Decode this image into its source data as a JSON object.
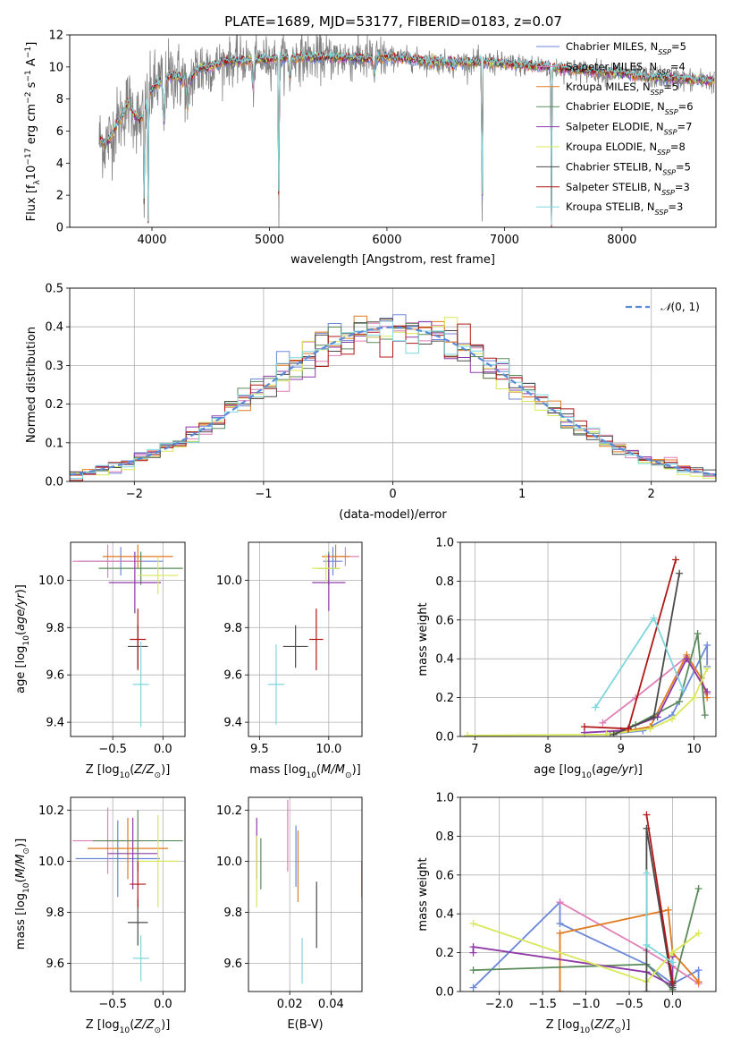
{
  "title": "PLATE=1689, MJD=53177, FIBERID=0183, z=0.07",
  "colors": {
    "Chabrier MILES": "#6b87d8",
    "Salpeter MILES": "#e07fb8",
    "Kroupa MILES": "#e07a1f",
    "Chabrier ELODIE": "#5a8a5a",
    "Salpeter ELODIE": "#8e3aa8",
    "Kroupa ELODIE": "#d8e85a",
    "Chabrier STELIB": "#4a4a4a",
    "Salpeter STELIB": "#b01818",
    "Kroupa STELIB": "#7fd6dc",
    "data": "#808080",
    "normal": "#5b8bd8"
  },
  "chart_data": [
    {
      "id": "spectrum",
      "type": "line",
      "title": "PLATE=1689, MJD=53177, FIBERID=0183, z=0.07",
      "xlabel": "wavelength [Angstrom, rest frame]",
      "ylabel": "Flux [f$_\\lambda$10$^{-17}$ erg cm$^{-2}$ s$^{-1}$ A$^{-1}$]",
      "xlim": [
        3300,
        8800
      ],
      "ylim": [
        0,
        12
      ],
      "xticks": [
        4000,
        5000,
        6000,
        7000,
        8000
      ],
      "yticks": [
        0,
        2,
        4,
        6,
        8,
        10,
        12
      ],
      "legend_position": "top-right",
      "legend": [
        {
          "series": "Chabrier MILES",
          "label": "Chabrier MILES, N",
          "sub": "SSP",
          "tail": "=5"
        },
        {
          "series": "Salpeter MILES",
          "label": "Salpeter MILES, N",
          "sub": "SSP",
          "tail": "=4"
        },
        {
          "series": "Kroupa MILES",
          "label": "Kroupa MILES, N",
          "sub": "SSP",
          "tail": "=5"
        },
        {
          "series": "Chabrier ELODIE",
          "label": "Chabrier ELODIE, N",
          "sub": "SSP",
          "tail": "=6"
        },
        {
          "series": "Salpeter ELODIE",
          "label": "Salpeter ELODIE, N",
          "sub": "SSP",
          "tail": "=7"
        },
        {
          "series": "Kroupa ELODIE",
          "label": "Kroupa ELODIE, N",
          "sub": "SSP",
          "tail": "=8"
        },
        {
          "series": "Chabrier STELIB",
          "label": "Chabrier STELIB, N",
          "sub": "SSP",
          "tail": "=5"
        },
        {
          "series": "Salpeter STELIB",
          "label": "Salpeter STELIB, N",
          "sub": "SSP",
          "tail": "=3"
        },
        {
          "series": "Kroupa STELIB",
          "label": "Kroupa STELIB, N",
          "sub": "SSP",
          "tail": "=3"
        }
      ],
      "continuum": {
        "x": [
          3550,
          3600,
          3650,
          3700,
          3750,
          3800,
          3850,
          3900,
          3950,
          4000,
          4100,
          4200,
          4300,
          4400,
          4500,
          4600,
          4800,
          5000,
          5200,
          5400,
          5600,
          5800,
          6000,
          6200,
          6400,
          6600,
          6800,
          7000,
          7200,
          7400,
          7600,
          7800,
          8000,
          8200,
          8400,
          8600,
          8800
        ],
        "y": [
          5.5,
          5.2,
          5.6,
          6.5,
          7.0,
          7.8,
          7.0,
          6.6,
          7.5,
          8.6,
          9.3,
          9.5,
          9.0,
          9.9,
          10.0,
          10.3,
          10.4,
          10.5,
          10.6,
          10.6,
          10.6,
          10.5,
          10.6,
          10.5,
          10.3,
          10.3,
          10.3,
          10.2,
          10.1,
          10.0,
          9.8,
          9.7,
          9.6,
          9.4,
          9.3,
          9.2,
          9.1
        ]
      },
      "absorption_lines": [
        {
          "x": 3934,
          "y": 0.3
        },
        {
          "x": 3968,
          "y": 0.4
        },
        {
          "x": 4102,
          "y": 6.5
        },
        {
          "x": 4305,
          "y": 7.5
        },
        {
          "x": 4861,
          "y": 8.8
        },
        {
          "x": 5080,
          "y": 0.0
        },
        {
          "x": 5175,
          "y": 9.3
        },
        {
          "x": 5892,
          "y": 9.6
        },
        {
          "x": 6563,
          "y": 10.0
        },
        {
          "x": 6810,
          "y": 0.0
        },
        {
          "x": 7400,
          "y": 0.0
        }
      ]
    },
    {
      "id": "residuals",
      "type": "line",
      "xlabel": "(data-model)/error",
      "ylabel": "Normed distribution",
      "xlim": [
        -2.5,
        2.5
      ],
      "ylim": [
        0,
        0.5
      ],
      "xticks": [
        -2,
        -1,
        0,
        1,
        2
      ],
      "yticks": [
        0.0,
        0.1,
        0.2,
        0.3,
        0.4,
        0.5
      ],
      "legend_position": "top-right",
      "legend": [
        {
          "label": "N(0, 1)"
        }
      ],
      "bin_width": 0.1
    },
    {
      "id": "age-vs-Z",
      "type": "scatter",
      "xlabel": "Z [log10(Z/Z⊙)]",
      "ylabel": "age  [log10(age/yr)]",
      "xlim": [
        -0.92,
        0.22
      ],
      "ylim": [
        9.34,
        10.16
      ],
      "xticks": [
        -0.5,
        0.0
      ],
      "yticks": [
        9.4,
        9.6,
        9.8,
        10.0
      ],
      "series": [
        {
          "name": "Chabrier MILES",
          "x": -0.42,
          "xerr": 0.42,
          "y": 10.08,
          "yerr": 0.06
        },
        {
          "name": "Salpeter MILES",
          "x": -0.55,
          "xerr": 0.35,
          "y": 10.08,
          "yerr": 0.07
        },
        {
          "name": "Kroupa MILES",
          "x": -0.25,
          "xerr": 0.35,
          "y": 10.1,
          "yerr": 0.05
        },
        {
          "name": "Chabrier ELODIE",
          "x": -0.22,
          "xerr": 0.42,
          "y": 10.05,
          "yerr": 0.07
        },
        {
          "name": "Salpeter ELODIE",
          "x": -0.28,
          "xerr": 0.26,
          "y": 9.99,
          "yerr": 0.13
        },
        {
          "name": "Kroupa ELODIE",
          "x": -0.05,
          "xerr": 0.2,
          "y": 10.02,
          "yerr": 0.08
        },
        {
          "name": "Chabrier STELIB",
          "x": -0.25,
          "xerr": 0.1,
          "y": 9.72,
          "yerr": 0.09
        },
        {
          "name": "Salpeter STELIB",
          "x": -0.25,
          "xerr": 0.08,
          "y": 9.75,
          "yerr": 0.13
        },
        {
          "name": "Kroupa STELIB",
          "x": -0.22,
          "xerr": 0.08,
          "y": 9.56,
          "yerr": 0.18
        }
      ]
    },
    {
      "id": "age-vs-mass",
      "type": "scatter",
      "xlabel": "mass [log10(M/M⊙)]",
      "ylabel": "",
      "xlim": [
        9.42,
        10.24
      ],
      "ylim": [
        9.34,
        10.16
      ],
      "xticks": [
        9.5,
        10.0
      ],
      "yticks": [
        9.4,
        9.6,
        9.8,
        10.0
      ],
      "series": [
        {
          "name": "Chabrier MILES",
          "x": 10.03,
          "xerr": 0.07,
          "y": 10.08,
          "yerr": 0.06
        },
        {
          "name": "Salpeter MILES",
          "x": 10.12,
          "xerr": 0.1,
          "y": 10.1,
          "yerr": 0.04
        },
        {
          "name": "Kroupa MILES",
          "x": 10.05,
          "xerr": 0.1,
          "y": 10.1,
          "yerr": 0.05
        },
        {
          "name": "Chabrier ELODIE",
          "x": 10.0,
          "xerr": 0.08,
          "y": 10.05,
          "yerr": 0.07
        },
        {
          "name": "Salpeter ELODIE",
          "x": 10.0,
          "xerr": 0.12,
          "y": 9.99,
          "yerr": 0.12
        },
        {
          "name": "Kroupa ELODIE",
          "x": 9.98,
          "xerr": 0.1,
          "y": 10.05,
          "yerr": 0.06
        },
        {
          "name": "Chabrier STELIB",
          "x": 9.76,
          "xerr": 0.09,
          "y": 9.72,
          "yerr": 0.09
        },
        {
          "name": "Salpeter STELIB",
          "x": 9.91,
          "xerr": 0.05,
          "y": 9.75,
          "yerr": 0.13
        },
        {
          "name": "Kroupa STELIB",
          "x": 9.62,
          "xerr": 0.06,
          "y": 9.56,
          "yerr": 0.17
        }
      ]
    },
    {
      "id": "mass-weight-vs-age",
      "type": "line",
      "xlabel": "age  [log10(age/yr)]",
      "ylabel": "mass weight",
      "xlim": [
        6.8,
        10.3
      ],
      "ylim": [
        0.0,
        1.0
      ],
      "xticks": [
        7,
        8,
        9,
        10
      ],
      "yticks": [
        0.0,
        0.2,
        0.4,
        0.6,
        0.8,
        1.0
      ],
      "grid": true,
      "series": [
        {
          "name": "Chabrier MILES",
          "x": [
            8.8,
            9.3,
            9.7,
            10.18,
            10.18
          ],
          "y": [
            0.01,
            0.03,
            0.11,
            0.47,
            0.36
          ]
        },
        {
          "name": "Salpeter MILES",
          "x": [
            8.75,
            9.2,
            9.9,
            10.18
          ],
          "y": [
            0.07,
            0.2,
            0.41,
            0.22
          ]
        },
        {
          "name": "Kroupa MILES",
          "x": [
            8.8,
            9.4,
            9.9,
            10.1,
            10.18
          ],
          "y": [
            0.01,
            0.05,
            0.42,
            0.3,
            0.2
          ]
        },
        {
          "name": "Chabrier ELODIE",
          "x": [
            8.85,
            9.2,
            9.8,
            10.05,
            10.15
          ],
          "y": [
            0.01,
            0.06,
            0.18,
            0.53,
            0.11
          ]
        },
        {
          "name": "Salpeter ELODIE",
          "x": [
            8.5,
            9.0,
            9.5,
            9.9,
            10.18
          ],
          "y": [
            0.02,
            0.03,
            0.1,
            0.4,
            0.23
          ]
        },
        {
          "name": "Kroupa ELODIE",
          "x": [
            6.9,
            8.8,
            9.4,
            9.7,
            10.0,
            10.18
          ],
          "y": [
            0.005,
            0.01,
            0.04,
            0.09,
            0.2,
            0.35
          ]
        },
        {
          "name": "Chabrier STELIB",
          "x": [
            8.9,
            9.45,
            9.8
          ],
          "y": [
            0.01,
            0.1,
            0.84
          ]
        },
        {
          "name": "Salpeter STELIB",
          "x": [
            8.5,
            9.1,
            9.75
          ],
          "y": [
            0.05,
            0.04,
            0.91
          ]
        },
        {
          "name": "Kroupa STELIB",
          "x": [
            8.65,
            9.45,
            9.85
          ],
          "y": [
            0.15,
            0.61,
            0.24
          ]
        }
      ]
    },
    {
      "id": "mass-vs-Z",
      "type": "scatter",
      "xlabel": "Z [log10(Z/Z⊙)]",
      "ylabel": "mass [log10(M/M⊙)]",
      "xlim": [
        -0.92,
        0.22
      ],
      "ylim": [
        9.49,
        10.25
      ],
      "xticks": [
        -0.5,
        0.0
      ],
      "yticks": [
        9.6,
        9.8,
        10.0,
        10.2
      ],
      "series": [
        {
          "name": "Chabrier MILES",
          "x": -0.45,
          "xerr": 0.42,
          "y": 10.01,
          "yerr": 0.15
        },
        {
          "name": "Salpeter MILES",
          "x": -0.55,
          "xerr": 0.35,
          "y": 10.08,
          "yerr": 0.13
        },
        {
          "name": "Kroupa MILES",
          "x": -0.35,
          "xerr": 0.4,
          "y": 10.05,
          "yerr": 0.12
        },
        {
          "name": "Chabrier ELODIE",
          "x": -0.25,
          "xerr": 0.45,
          "y": 10.08,
          "yerr": 0.12
        },
        {
          "name": "Salpeter ELODIE",
          "x": -0.3,
          "xerr": 0.25,
          "y": 10.03,
          "yerr": 0.14
        },
        {
          "name": "Kroupa ELODIE",
          "x": -0.05,
          "xerr": 0.2,
          "y": 10.0,
          "yerr": 0.18
        },
        {
          "name": "Chabrier STELIB",
          "x": -0.25,
          "xerr": 0.1,
          "y": 9.76,
          "yerr": 0.09
        },
        {
          "name": "Salpeter STELIB",
          "x": -0.25,
          "xerr": 0.08,
          "y": 9.91,
          "yerr": 0.09
        },
        {
          "name": "Kroupa STELIB",
          "x": -0.22,
          "xerr": 0.08,
          "y": 9.62,
          "yerr": 0.09
        }
      ]
    },
    {
      "id": "mass-vs-EBV",
      "type": "scatter",
      "xlabel": "E(B-V)",
      "ylabel": "",
      "xlim": [
        0.0,
        0.055
      ],
      "ylim": [
        9.49,
        10.25
      ],
      "xticks": [
        0.02,
        0.04
      ],
      "yticks": [
        9.6,
        9.8,
        10.0,
        10.2
      ],
      "series": [
        {
          "name": "Chabrier MILES",
          "x": 0.023,
          "y": 10.02,
          "yerr": 0.12
        },
        {
          "name": "Salpeter MILES",
          "x": 0.019,
          "y": 10.1,
          "yerr": 0.14
        },
        {
          "name": "Kroupa MILES",
          "x": 0.024,
          "y": 9.98,
          "yerr": 0.14
        },
        {
          "name": "Chabrier ELODIE",
          "x": 0.006,
          "y": 9.99,
          "yerr": 0.1
        },
        {
          "name": "Salpeter ELODIE",
          "x": 0.004,
          "y": 10.05,
          "yerr": 0.12
        },
        {
          "name": "Kroupa ELODIE",
          "x": 0.004,
          "y": 9.96,
          "yerr": 0.14
        },
        {
          "name": "Chabrier STELIB",
          "x": 0.033,
          "y": 9.79,
          "yerr": 0.13
        },
        {
          "name": "Salpeter STELIB",
          "x": 0.055,
          "y": 9.93,
          "yerr": 0.07
        },
        {
          "name": "Kroupa STELIB",
          "x": 0.026,
          "y": 9.61,
          "yerr": 0.09
        }
      ]
    },
    {
      "id": "mass-weight-vs-Z",
      "type": "line",
      "xlabel": "Z [log10(Z/Z⊙)]",
      "ylabel": "mass weight",
      "xlim": [
        -2.45,
        0.5
      ],
      "ylim": [
        0.0,
        1.0
      ],
      "xticks": [
        -2.0,
        -1.5,
        -1.0,
        -0.5,
        0.0
      ],
      "yticks": [
        0.0,
        0.2,
        0.4,
        0.6,
        0.8,
        1.0
      ],
      "grid": true,
      "series": [
        {
          "name": "Chabrier MILES",
          "x": [
            -2.3,
            -1.3,
            -1.3,
            -0.3,
            0.0,
            0.3,
            0.3
          ],
          "y": [
            0.02,
            0.46,
            0.35,
            0.14,
            0.04,
            0.11,
            0.05
          ]
        },
        {
          "name": "Salpeter MILES",
          "x": [
            -1.3,
            -0.3,
            0.0,
            0.3
          ],
          "y": [
            0.46,
            0.21,
            0.13,
            0.04
          ]
        },
        {
          "name": "Kroupa MILES",
          "x": [
            -1.3,
            -1.3,
            -0.05,
            0.0,
            0.3
          ],
          "y": [
            0.0,
            0.3,
            0.42,
            0.2,
            0.05
          ]
        },
        {
          "name": "Chabrier ELODIE",
          "x": [
            -2.3,
            -0.3,
            0.0,
            0.3
          ],
          "y": [
            0.11,
            0.14,
            0.01,
            0.53
          ]
        },
        {
          "name": "Salpeter ELODIE",
          "x": [
            -2.3,
            -2.3,
            -0.3,
            0.0,
            0.0
          ],
          "y": [
            0.2,
            0.23,
            0.1,
            0.03,
            0.18
          ]
        },
        {
          "name": "Kroupa ELODIE",
          "x": [
            -2.3,
            -0.3,
            0.0,
            0.3
          ],
          "y": [
            0.35,
            0.05,
            0.2,
            0.3
          ]
        },
        {
          "name": "Chabrier STELIB",
          "x": [
            -0.3,
            -0.3,
            0.0,
            0.0
          ],
          "y": [
            0.0,
            0.84,
            0.02,
            0.04
          ]
        },
        {
          "name": "Salpeter STELIB",
          "x": [
            -0.3,
            0.0
          ],
          "y": [
            0.91,
            0.05
          ]
        },
        {
          "name": "Kroupa STELIB",
          "x": [
            -0.3,
            -0.3,
            0.0
          ],
          "y": [
            0.61,
            0.24,
            0.15
          ]
        }
      ]
    }
  ]
}
